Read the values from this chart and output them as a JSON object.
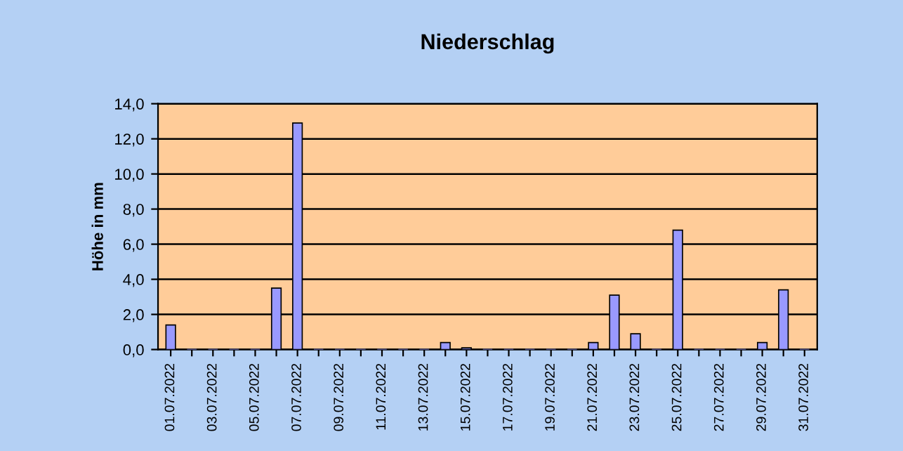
{
  "chart_data": {
    "type": "bar",
    "title": "Niederschlag",
    "ylabel": "Höhe in mm",
    "categories": [
      "01.07.2022",
      null,
      "03.07.2022",
      null,
      "05.07.2022",
      null,
      "07.07.2022",
      null,
      "09.07.2022",
      null,
      "11.07.2022",
      null,
      "13.07.2022",
      null,
      "15.07.2022",
      null,
      "17.07.2022",
      null,
      "19.07.2022",
      null,
      "21.07.2022",
      null,
      "23.07.2022",
      null,
      "25.07.2022",
      null,
      "27.07.2022",
      null,
      "29.07.2022",
      null,
      "31.07.2022"
    ],
    "values": [
      1.4,
      0,
      0,
      0,
      0,
      3.5,
      12.9,
      0,
      0,
      0,
      0,
      0,
      0,
      0.4,
      0.1,
      0,
      0,
      0,
      0,
      0,
      0.4,
      3.1,
      0.9,
      0,
      6.8,
      0,
      0,
      0,
      0.4,
      3.4,
      0
    ],
    "color": "#9999ff",
    "ylim": [
      0,
      14
    ],
    "yticks": [
      {
        "value": 0,
        "label": "0,0"
      },
      {
        "value": 2,
        "label": "2,0"
      },
      {
        "value": 4,
        "label": "4,0"
      },
      {
        "value": 6,
        "label": "6,0"
      },
      {
        "value": 8,
        "label": "8,0"
      },
      {
        "value": 10,
        "label": "10,0"
      },
      {
        "value": 12,
        "label": "12,0"
      },
      {
        "value": 14,
        "label": "14,0"
      }
    ],
    "grid": "y",
    "legend": false
  }
}
